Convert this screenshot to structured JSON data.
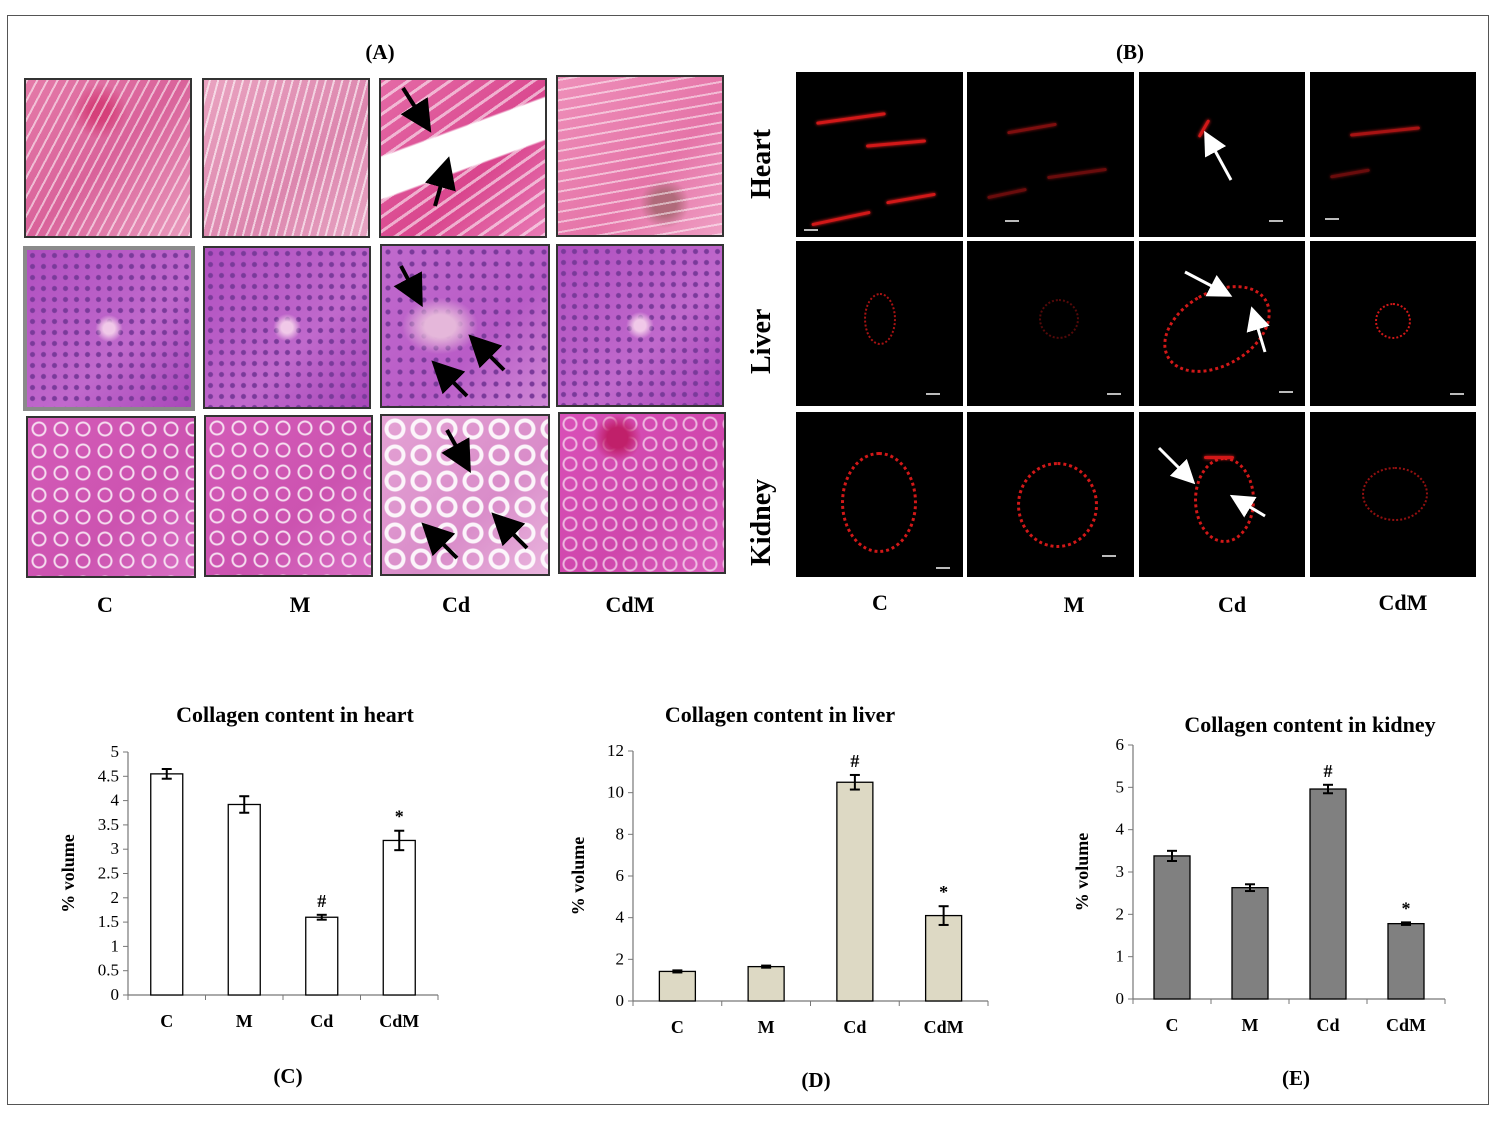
{
  "panel_labels": {
    "A": "(A)",
    "B": "(B)",
    "C": "(C)",
    "D": "(D)",
    "E": "(E)"
  },
  "groups": [
    "C",
    "M",
    "Cd",
    "CdM"
  ],
  "fluor_rows": [
    "Heart",
    "Liver",
    "Kidney"
  ],
  "colors": {
    "heart_bar": "#ffffff",
    "liver_bar": "#ddd9c4",
    "kidney_bar": "#808080"
  },
  "chart_data": [
    {
      "type": "bar",
      "title": "Collagen content in heart",
      "ylabel": "% volume",
      "xlabel": "",
      "categories": [
        "C",
        "M",
        "Cd",
        "CdM"
      ],
      "values": [
        4.55,
        3.92,
        1.6,
        3.18
      ],
      "errors": [
        0.1,
        0.17,
        0.05,
        0.2
      ],
      "annotations": [
        "",
        "",
        "#",
        "*"
      ],
      "ylim": [
        0,
        5
      ],
      "yticks": [
        "0",
        "0.5",
        "1",
        "1.5",
        "2",
        "2.5",
        "3",
        "3.5",
        "4",
        "4.5",
        "5"
      ],
      "ytick_values": [
        0,
        0.5,
        1,
        1.5,
        2,
        2.5,
        3,
        3.5,
        4,
        4.5,
        5
      ],
      "grid": false
    },
    {
      "type": "bar",
      "title": "Collagen content in liver",
      "ylabel": "% volume",
      "xlabel": "",
      "categories": [
        "C",
        "M",
        "Cd",
        "CdM"
      ],
      "values": [
        1.42,
        1.65,
        10.5,
        4.1
      ],
      "errors": [
        0.05,
        0.05,
        0.35,
        0.45
      ],
      "annotations": [
        "",
        "",
        "#",
        "*"
      ],
      "ylim": [
        0,
        12
      ],
      "yticks": [
        "0",
        "2",
        "4",
        "6",
        "8",
        "10",
        "12"
      ],
      "ytick_values": [
        0,
        2,
        4,
        6,
        8,
        10,
        12
      ],
      "grid": false
    },
    {
      "type": "bar",
      "title": "Collagen content in kidney",
      "ylabel": "% volume",
      "xlabel": "",
      "categories": [
        "C",
        "M",
        "Cd",
        "CdM"
      ],
      "values": [
        3.38,
        2.63,
        4.96,
        1.78
      ],
      "errors": [
        0.12,
        0.08,
        0.1,
        0.03
      ],
      "annotations": [
        "",
        "",
        "#",
        "*"
      ],
      "ylim": [
        0,
        6
      ],
      "yticks": [
        "0",
        "1",
        "2",
        "3",
        "4",
        "5",
        "6"
      ],
      "ytick_values": [
        0,
        1,
        2,
        3,
        4,
        5,
        6
      ],
      "grid": false
    }
  ]
}
